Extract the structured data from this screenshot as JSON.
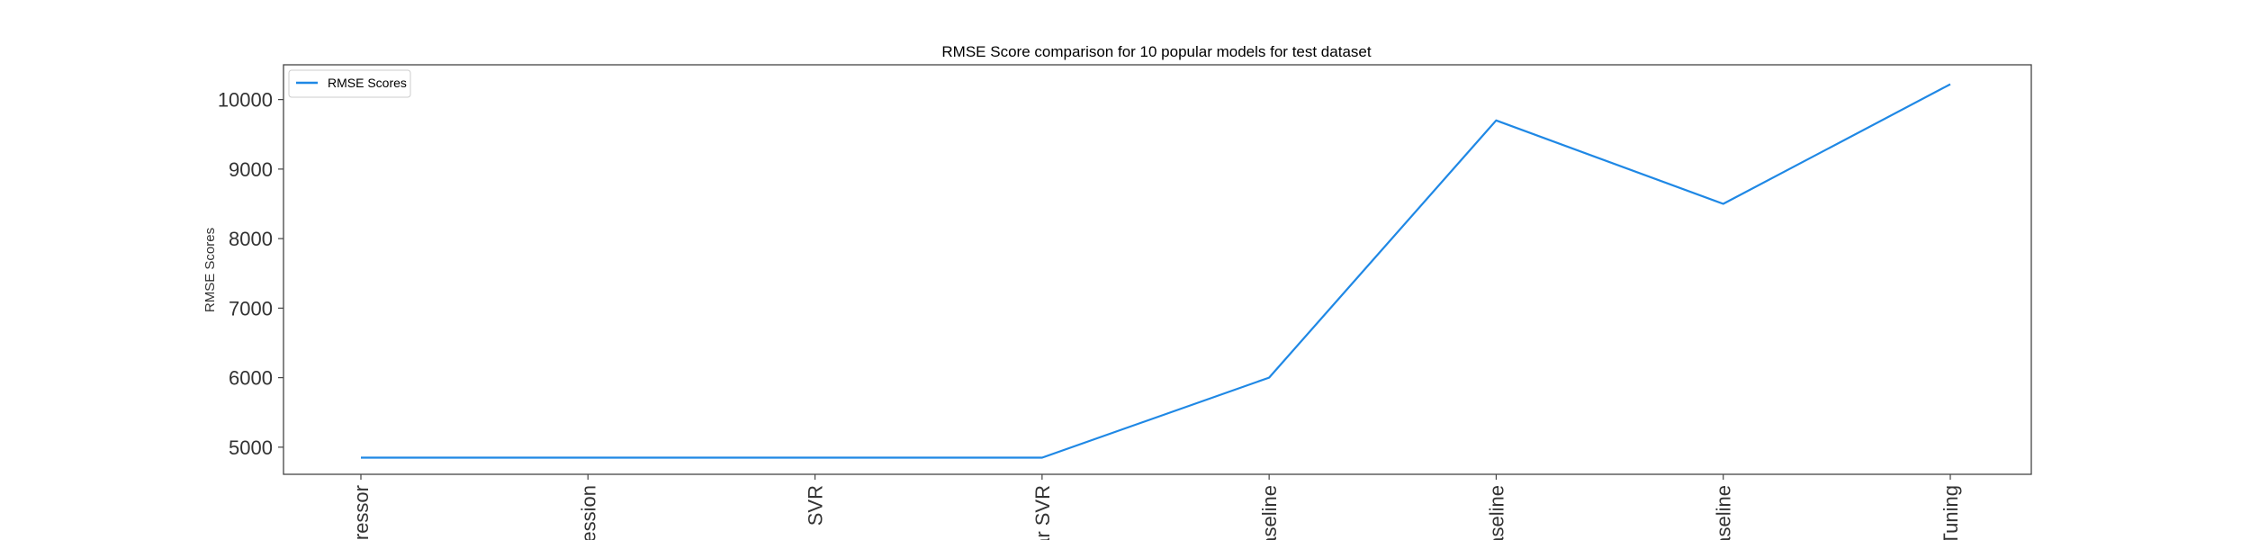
{
  "chart_data": {
    "type": "line",
    "title": "RMSE Score comparison for 10 popular models for test dataset",
    "xlabel": "",
    "ylabel": "RMSE Scores",
    "categories": [
      "gressor",
      "ression",
      "SVR",
      "ear SVR",
      "aseline",
      "aseline",
      "aseline",
      "Tuning"
    ],
    "series": [
      {
        "name": "RMSE Scores",
        "color": "#1f88e5",
        "values": [
          4850,
          4850,
          4850,
          4850,
          6000,
          9700,
          8500,
          10220
        ]
      }
    ],
    "yticks": [
      5000,
      6000,
      7000,
      8000,
      9000,
      10000
    ],
    "ylim": [
      4610,
      10500
    ],
    "grid": false,
    "legend_position": "top-left"
  }
}
